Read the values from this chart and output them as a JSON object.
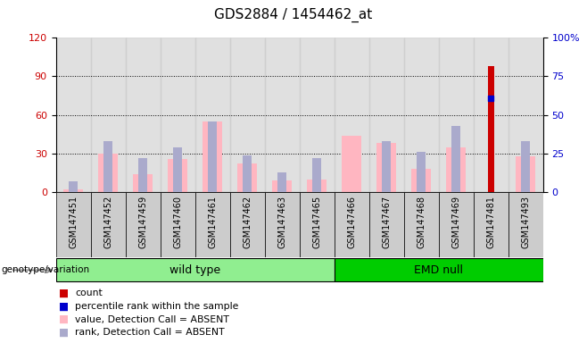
{
  "title": "GDS2884 / 1454462_at",
  "samples": [
    "GSM147451",
    "GSM147452",
    "GSM147459",
    "GSM147460",
    "GSM147461",
    "GSM147462",
    "GSM147463",
    "GSM147465",
    "GSM147466",
    "GSM147467",
    "GSM147468",
    "GSM147469",
    "GSM147481",
    "GSM147493"
  ],
  "count_values": [
    0,
    0,
    0,
    0,
    0,
    0,
    0,
    0,
    0,
    0,
    0,
    0,
    98,
    0
  ],
  "percentile_rank": [
    0,
    0,
    0,
    0,
    0,
    0,
    0,
    0,
    0,
    0,
    0,
    0,
    61,
    0
  ],
  "absent_value": [
    2,
    30,
    14,
    26,
    55,
    22,
    9,
    10,
    44,
    38,
    18,
    35,
    0,
    28
  ],
  "absent_rank": [
    7,
    33,
    22,
    29,
    46,
    24,
    13,
    22,
    0,
    33,
    26,
    43,
    0,
    33
  ],
  "groups": [
    {
      "label": "wild type",
      "start": 0,
      "end": 8,
      "color": "#90EE90"
    },
    {
      "label": "EMD null",
      "start": 8,
      "end": 14,
      "color": "#00CC00"
    }
  ],
  "ylim_left": [
    0,
    120
  ],
  "ylim_right": [
    0,
    100
  ],
  "left_ticks": [
    0,
    30,
    60,
    90,
    120
  ],
  "right_ticks": [
    0,
    25,
    50,
    75,
    100
  ],
  "left_tick_color": "#CC0000",
  "right_tick_color": "#0000CC",
  "count_color": "#CC0000",
  "percentile_color": "#0000CC",
  "absent_value_color": "#FFB6C1",
  "absent_rank_color": "#AAAACC",
  "grid_color": "black",
  "bg_color": "#FFFFFF",
  "bar_bg_color": "#CCCCCC",
  "genotype_label": "genotype/variation",
  "legend_items": [
    {
      "color": "#CC0000",
      "label": "count"
    },
    {
      "color": "#0000CC",
      "label": "percentile rank within the sample"
    },
    {
      "color": "#FFB6C1",
      "label": "value, Detection Call = ABSENT"
    },
    {
      "color": "#AAAACC",
      "label": "rank, Detection Call = ABSENT"
    }
  ]
}
